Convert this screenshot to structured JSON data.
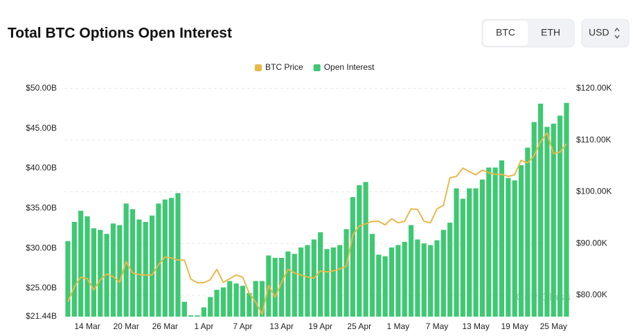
{
  "header": {
    "title": "Total BTC Options Open Interest"
  },
  "controls": {
    "asset_tabs": [
      "BTC",
      "ETH"
    ],
    "currency": "USD"
  },
  "watermark": "CoinGlass",
  "chart_data": {
    "type": "bar",
    "categories": [
      null,
      null,
      null,
      "14 Mar",
      null,
      null,
      null,
      null,
      null,
      "20 Mar",
      null,
      null,
      null,
      null,
      null,
      "26 Mar",
      null,
      null,
      null,
      null,
      null,
      "1 Apr",
      null,
      null,
      null,
      null,
      null,
      "7 Apr",
      null,
      null,
      null,
      null,
      null,
      "13 Apr",
      null,
      null,
      null,
      null,
      null,
      "19 Apr",
      null,
      null,
      null,
      null,
      null,
      "25 Apr",
      null,
      null,
      null,
      null,
      null,
      "1 May",
      null,
      null,
      null,
      null,
      null,
      "7 May",
      null,
      null,
      null,
      null,
      null,
      "13 May",
      null,
      null,
      null,
      null,
      null,
      "19 May",
      null,
      null,
      null,
      null,
      null,
      "25 May",
      null,
      null
    ],
    "series": [
      {
        "name": "BTC Price",
        "color": "#e8b84a",
        "type": "line",
        "axis": "y2",
        "values": [
          78.7,
          81.6,
          83.5,
          83.2,
          81.0,
          83.0,
          84.1,
          83.6,
          82.5,
          86.5,
          84.3,
          84.0,
          83.9,
          83.9,
          85.9,
          87.4,
          87.2,
          86.8,
          86.8,
          83.1,
          82.4,
          82.4,
          83.0,
          85.0,
          82.5,
          83.2,
          83.9,
          83.5,
          80.4,
          78.7,
          76.3,
          81.9,
          79.6,
          82.5,
          85.0,
          84.3,
          83.9,
          83.5,
          83.3,
          84.7,
          84.5,
          84.7,
          85.1,
          85.6,
          91.6,
          93.4,
          93.8,
          94.3,
          94.3,
          93.6,
          94.8,
          94.0,
          94.3,
          96.7,
          96.6,
          94.3,
          94.0,
          96.7,
          97.4,
          102.7,
          103.0,
          104.6,
          103.9,
          103.3,
          104.2,
          103.7,
          103.4,
          103.4,
          103.0,
          103.3,
          106.1,
          105.6,
          107.0,
          109.7,
          111.4,
          107.4,
          107.7,
          109.3
        ]
      },
      {
        "name": "Open Interest",
        "color": "#3fc873",
        "type": "bar",
        "values": [
          30.9,
          33.3,
          34.7,
          34.0,
          32.5,
          32.3,
          31.8,
          33.1,
          32.9,
          35.6,
          34.9,
          33.6,
          33.3,
          34.1,
          35.6,
          36.1,
          36.3,
          36.9,
          23.3,
          21.6,
          21.6,
          22.6,
          23.9,
          24.8,
          25.1,
          25.9,
          25.6,
          25.3,
          24.4,
          25.9,
          25.9,
          29.1,
          28.8,
          28.8,
          29.6,
          29.3,
          30.1,
          30.4,
          31.1,
          32.0,
          29.9,
          30.1,
          30.4,
          32.4,
          36.4,
          37.9,
          38.3,
          31.8,
          29.2,
          29.0,
          30.1,
          30.4,
          30.8,
          32.9,
          31.1,
          30.6,
          30.4,
          31.0,
          32.3,
          33.2,
          37.5,
          36.2,
          37.5,
          37.5,
          38.6,
          40.1,
          40.1,
          41.0,
          38.8,
          38.5,
          40.4,
          42.6,
          45.8,
          48.1,
          45.2,
          45.6,
          46.6,
          48.2
        ]
      }
    ],
    "ylim": [
      21.44,
      50
    ],
    "yticks": [
      {
        "value": 21.44,
        "label": "$21.44B"
      },
      {
        "value": 25,
        "label": "$25.00B"
      },
      {
        "value": 30,
        "label": "$30.00B"
      },
      {
        "value": 35,
        "label": "$35.00B"
      },
      {
        "value": 40,
        "label": "$40.00B"
      },
      {
        "value": 45,
        "label": "$45.00B"
      },
      {
        "value": 50,
        "label": "$50.00B"
      }
    ],
    "y2lim": [
      75.85,
      120
    ],
    "y2ticks": [
      {
        "value": 80,
        "label": "$80.00K"
      },
      {
        "value": 90,
        "label": "$90.00K"
      },
      {
        "value": 100,
        "label": "$100.00K"
      },
      {
        "value": 110,
        "label": "$110.00K"
      },
      {
        "value": 120,
        "label": "$120.00K"
      }
    ],
    "grid": true,
    "legend": "top"
  }
}
